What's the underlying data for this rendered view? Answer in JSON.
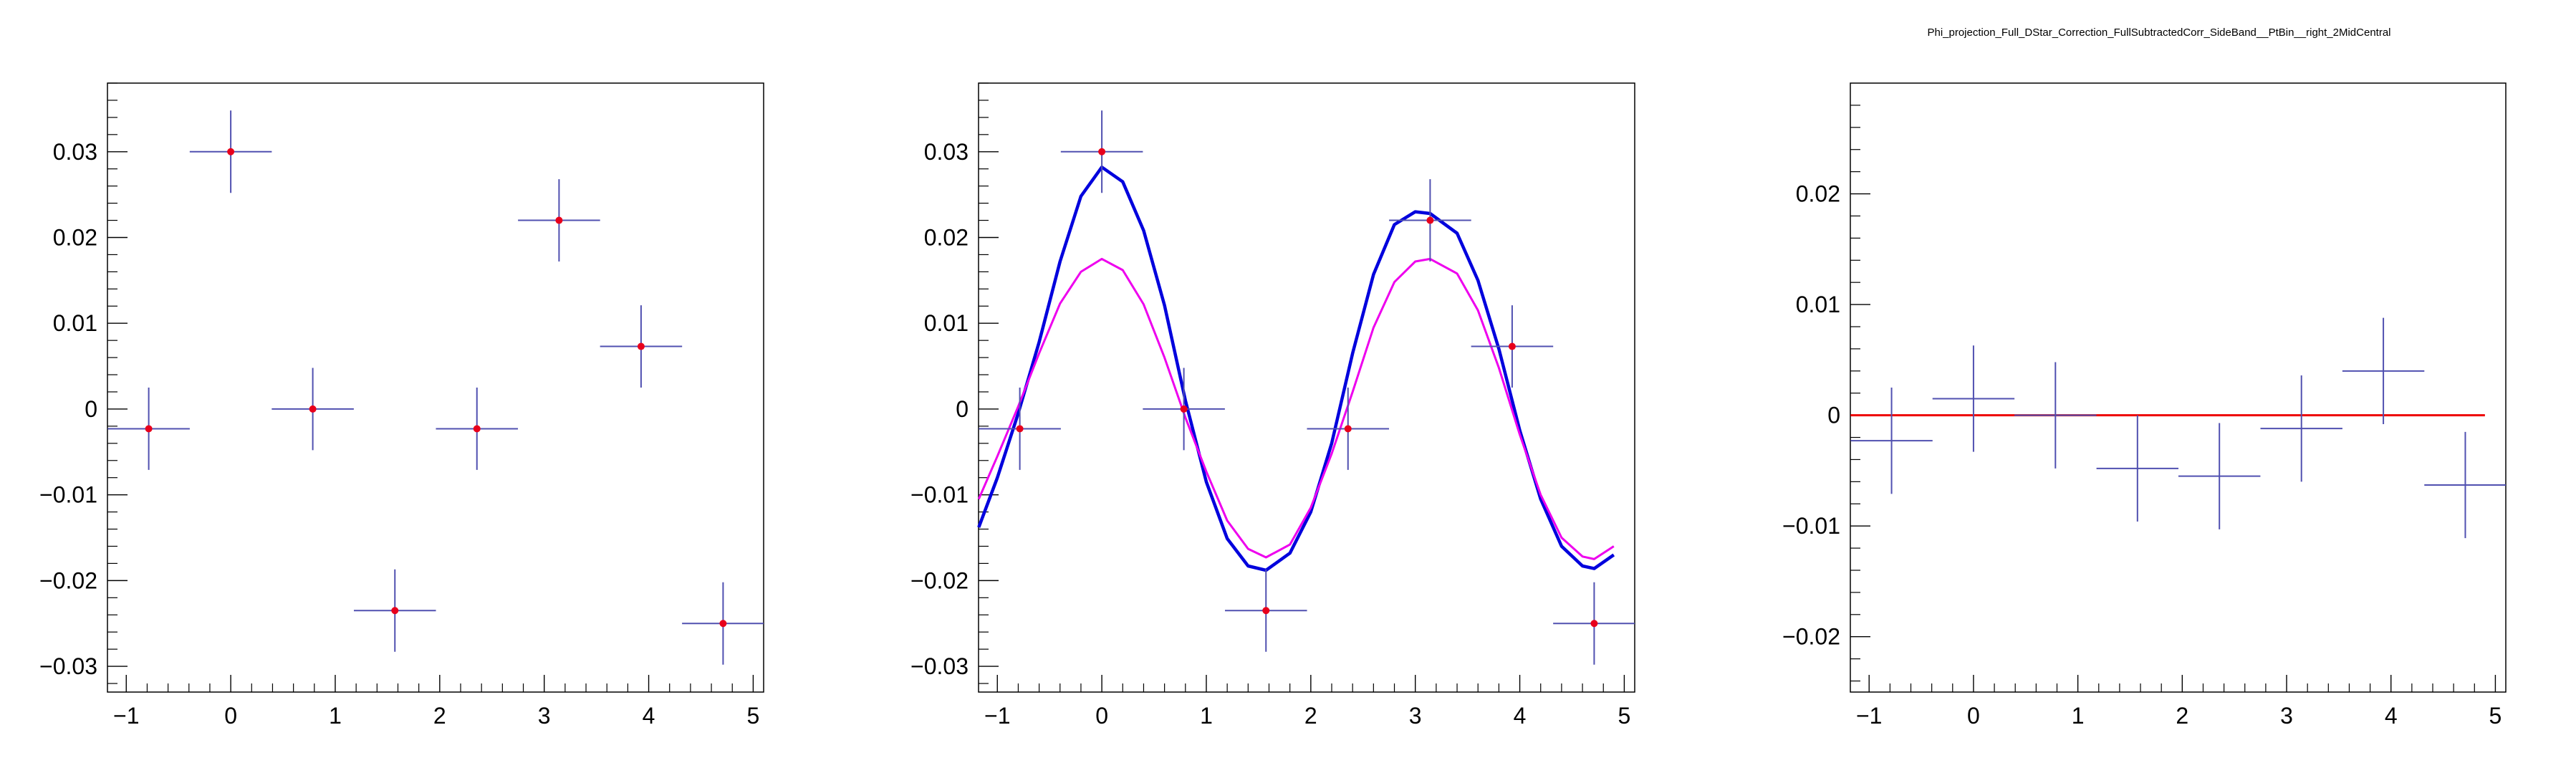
{
  "page_title": "Phi_projection_Full_DStar_Correction_FullSubtractedCorr_SideBand__PtBin__right_2MidCentral",
  "colors": {
    "points": "#e8001c",
    "error_bars": "#5050b0",
    "fit_total": "#0000dd",
    "fit_component": "#ee00ee",
    "zero_line": "#ee0000",
    "frame": "#000000"
  },
  "chart_data": [
    {
      "type": "scatter",
      "title": "",
      "xlim": [
        -1.18,
        5.1
      ],
      "ylim": [
        -0.033,
        0.038
      ],
      "x_ticks": [
        -1,
        0,
        1,
        2,
        3,
        4,
        5
      ],
      "x_tick_labels": [
        "−1",
        "0",
        "1",
        "2",
        "3",
        "4",
        "5"
      ],
      "y_ticks": [
        -0.03,
        -0.02,
        -0.01,
        0,
        0.01,
        0.02,
        0.03
      ],
      "y_tick_labels": [
        "−0.03",
        "−0.02",
        "−0.01",
        "0",
        "0.01",
        "0.02",
        "0.03"
      ],
      "series": [
        {
          "x": [
            -0.785,
            0.0,
            0.785,
            1.571,
            2.356,
            3.142,
            3.927,
            4.712
          ],
          "y": [
            -0.0023,
            0.03,
            0.0,
            -0.0235,
            -0.0023,
            0.022,
            0.0073,
            -0.025
          ],
          "xerr": [
            0.3927,
            0.3927,
            0.3927,
            0.3927,
            0.3927,
            0.3927,
            0.3927,
            0.3927
          ],
          "yerr": [
            0.0048,
            0.0048,
            0.0048,
            0.0048,
            0.0048,
            0.0048,
            0.0048,
            0.0048
          ]
        }
      ]
    },
    {
      "type": "scatter",
      "title": "",
      "xlim": [
        -1.18,
        5.1
      ],
      "ylim": [
        -0.033,
        0.038
      ],
      "x_ticks": [
        -1,
        0,
        1,
        2,
        3,
        4,
        5
      ],
      "x_tick_labels": [
        "−1",
        "0",
        "1",
        "2",
        "3",
        "4",
        "5"
      ],
      "y_ticks": [
        -0.03,
        -0.02,
        -0.01,
        0,
        0.01,
        0.02,
        0.03
      ],
      "y_tick_labels": [
        "−0.03",
        "−0.02",
        "−0.01",
        "0",
        "0.01",
        "0.02",
        "0.03"
      ],
      "series": [
        {
          "x": [
            -0.785,
            0.0,
            0.785,
            1.571,
            2.356,
            3.142,
            3.927,
            4.712
          ],
          "y": [
            -0.0023,
            0.03,
            0.0,
            -0.0235,
            -0.0023,
            0.022,
            0.0073,
            -0.025
          ],
          "xerr": [
            0.3927,
            0.3927,
            0.3927,
            0.3927,
            0.3927,
            0.3927,
            0.3927,
            0.3927
          ],
          "yerr": [
            0.0048,
            0.0048,
            0.0048,
            0.0048,
            0.0048,
            0.0048,
            0.0048,
            0.0048
          ]
        }
      ],
      "curves": [
        {
          "role": "fit_total",
          "x": [
            -1.178,
            -1.0,
            -0.8,
            -0.6,
            -0.4,
            -0.2,
            0.0,
            0.2,
            0.4,
            0.6,
            0.8,
            1.0,
            1.2,
            1.4,
            1.571,
            1.8,
            2.0,
            2.2,
            2.4,
            2.6,
            2.8,
            3.0,
            3.142,
            3.4,
            3.6,
            3.8,
            4.0,
            4.2,
            4.4,
            4.6,
            4.712,
            4.9
          ],
          "y": [
            -0.0138,
            -0.008,
            -0.0005,
            0.0078,
            0.0172,
            0.0248,
            0.0282,
            0.0265,
            0.0208,
            0.0121,
            0.001,
            -0.0085,
            -0.0151,
            -0.0183,
            -0.0188,
            -0.0168,
            -0.012,
            -0.004,
            0.0065,
            0.0157,
            0.0215,
            0.023,
            0.0228,
            0.0205,
            0.015,
            0.007,
            -0.0025,
            -0.0105,
            -0.016,
            -0.0183,
            -0.0186,
            -0.017
          ]
        },
        {
          "role": "fit_component",
          "x": [
            -1.178,
            -1.0,
            -0.8,
            -0.6,
            -0.4,
            -0.2,
            0.0,
            0.2,
            0.4,
            0.6,
            0.8,
            1.0,
            1.2,
            1.4,
            1.571,
            1.8,
            2.0,
            2.2,
            2.4,
            2.6,
            2.8,
            3.0,
            3.142,
            3.4,
            3.6,
            3.8,
            4.0,
            4.2,
            4.4,
            4.6,
            4.712,
            4.9
          ],
          "y": [
            -0.0105,
            -0.0055,
            0.0003,
            0.0065,
            0.0123,
            0.016,
            0.0175,
            0.0162,
            0.0122,
            0.006,
            -0.001,
            -0.0073,
            -0.013,
            -0.0163,
            -0.0173,
            -0.0158,
            -0.0115,
            -0.0052,
            0.002,
            0.0095,
            0.0148,
            0.0172,
            0.0175,
            0.0158,
            0.0115,
            0.0048,
            -0.003,
            -0.01,
            -0.015,
            -0.0172,
            -0.0175,
            -0.016
          ]
        }
      ]
    },
    {
      "type": "scatter",
      "title": "",
      "xlim": [
        -1.18,
        5.1
      ],
      "ylim": [
        -0.025,
        0.03
      ],
      "x_ticks": [
        -1,
        0,
        1,
        2,
        3,
        4,
        5
      ],
      "x_tick_labels": [
        "−1",
        "0",
        "1",
        "2",
        "3",
        "4",
        "5"
      ],
      "y_ticks": [
        -0.02,
        -0.01,
        0,
        0.01,
        0.02
      ],
      "y_tick_labels": [
        "−0.02",
        "−0.01",
        "0",
        "0.01",
        "0.02"
      ],
      "series": [
        {
          "x": [
            -0.785,
            0.0,
            0.785,
            1.571,
            2.356,
            3.142,
            3.927,
            4.712
          ],
          "y": [
            -0.0023,
            0.0015,
            0.0,
            -0.0048,
            -0.0055,
            -0.0012,
            0.004,
            -0.0063
          ],
          "xerr": [
            0.3927,
            0.3927,
            0.3927,
            0.3927,
            0.3927,
            0.3927,
            0.3927,
            0.3927
          ],
          "yerr": [
            0.0048,
            0.0048,
            0.0048,
            0.0048,
            0.0048,
            0.0048,
            0.0048,
            0.0048
          ]
        }
      ],
      "reference_line": {
        "y": 0,
        "x_range": [
          -1.178,
          4.9
        ]
      }
    }
  ]
}
